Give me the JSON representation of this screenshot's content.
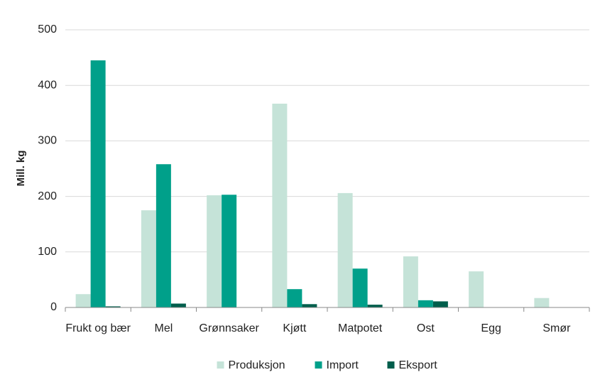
{
  "chart_data": {
    "type": "bar",
    "y_label": "Mill. kg",
    "categories": [
      "Frukt og bær",
      "Mel",
      "Grønnsaker",
      "Kjøtt",
      "Matpotet",
      "Ost",
      "Egg",
      "Smør"
    ],
    "series": [
      {
        "name": "Produksjon",
        "color": "#c5e3d8",
        "values": [
          24,
          175,
          202,
          367,
          206,
          92,
          65,
          17
        ]
      },
      {
        "name": "Import",
        "color": "#00a08a",
        "values": [
          445,
          258,
          203,
          33,
          70,
          13,
          0,
          0
        ]
      },
      {
        "name": "Eksport",
        "color": "#005e4c",
        "values": [
          2,
          7,
          0,
          6,
          5,
          11,
          0,
          0
        ]
      }
    ],
    "ylim": [
      0,
      500
    ],
    "yticks": [
      0,
      100,
      200,
      300,
      400,
      500
    ],
    "grid": true,
    "legend": "bottom"
  }
}
